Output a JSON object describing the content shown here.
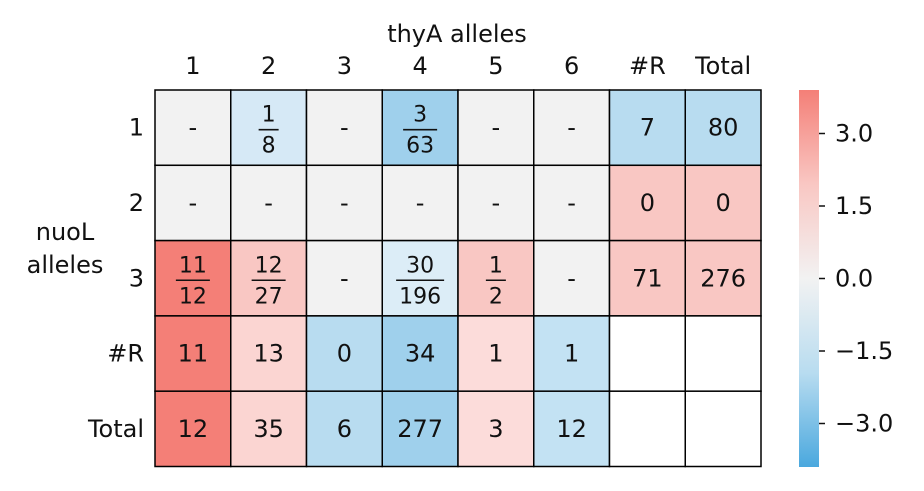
{
  "chart_data": {
    "type": "heatmap",
    "title": "thyA alleles",
    "xlabel": "thyA alleles",
    "ylabel": "nuoL alleles",
    "x_categories": [
      "1",
      "2",
      "3",
      "4",
      "5",
      "6",
      "#R",
      "Total"
    ],
    "y_categories": [
      "1",
      "2",
      "3",
      "#R",
      "Total"
    ],
    "cells": [
      [
        {
          "num": "-",
          "den": "",
          "color": "#f2f2f2"
        },
        {
          "num": "1",
          "den": "8",
          "color": "#d6e9f6"
        },
        {
          "num": "-",
          "den": "",
          "color": "#f2f2f2"
        },
        {
          "num": "3",
          "den": "63",
          "color": "#9fd0ec"
        },
        {
          "num": "-",
          "den": "",
          "color": "#f2f2f2"
        },
        {
          "num": "-",
          "den": "",
          "color": "#f2f2f2"
        },
        {
          "num": "7",
          "den": "",
          "color": "#b8dcf0"
        },
        {
          "num": "80",
          "den": "",
          "color": "#b8dcf0"
        }
      ],
      [
        {
          "num": "-",
          "den": "",
          "color": "#f2f2f2"
        },
        {
          "num": "-",
          "den": "",
          "color": "#f2f2f2"
        },
        {
          "num": "-",
          "den": "",
          "color": "#f2f2f2"
        },
        {
          "num": "-",
          "den": "",
          "color": "#f2f2f2"
        },
        {
          "num": "-",
          "den": "",
          "color": "#f2f2f2"
        },
        {
          "num": "-",
          "den": "",
          "color": "#f2f2f2"
        },
        {
          "num": "0",
          "den": "",
          "color": "#f9c7c3"
        },
        {
          "num": "0",
          "den": "",
          "color": "#f9c7c3"
        }
      ],
      [
        {
          "num": "11",
          "den": "12",
          "color": "#f47f77"
        },
        {
          "num": "12",
          "den": "27",
          "color": "#f9c7c3"
        },
        {
          "num": "-",
          "den": "",
          "color": "#f2f2f2"
        },
        {
          "num": "30",
          "den": "196",
          "color": "#dcedf7"
        },
        {
          "num": "1",
          "den": "2",
          "color": "#f9c7c3"
        },
        {
          "num": "-",
          "den": "",
          "color": "#f2f2f2"
        },
        {
          "num": "71",
          "den": "",
          "color": "#f9c7c3"
        },
        {
          "num": "276",
          "den": "",
          "color": "#f9c7c3"
        }
      ],
      [
        {
          "num": "11",
          "den": "",
          "color": "#f47f77"
        },
        {
          "num": "13",
          "den": "",
          "color": "#fbd5d2"
        },
        {
          "num": "0",
          "den": "",
          "color": "#b8dcf0"
        },
        {
          "num": "34",
          "den": "",
          "color": "#9fd0ec"
        },
        {
          "num": "1",
          "den": "",
          "color": "#fcdcda"
        },
        {
          "num": "1",
          "den": "",
          "color": "#c3e2f3"
        },
        {
          "num": "",
          "den": "",
          "color": "#ffffff"
        },
        {
          "num": "",
          "den": "",
          "color": "#ffffff"
        }
      ],
      [
        {
          "num": "12",
          "den": "",
          "color": "#f47f77"
        },
        {
          "num": "35",
          "den": "",
          "color": "#fbd5d2"
        },
        {
          "num": "6",
          "den": "",
          "color": "#b8dcf0"
        },
        {
          "num": "277",
          "den": "",
          "color": "#9fd0ec"
        },
        {
          "num": "3",
          "den": "",
          "color": "#fcdcda"
        },
        {
          "num": "12",
          "den": "",
          "color": "#c3e2f3"
        },
        {
          "num": "",
          "den": "",
          "color": "#ffffff"
        },
        {
          "num": "",
          "den": "",
          "color": "#ffffff"
        }
      ]
    ],
    "colorbar": {
      "ticks": [
        "3.0",
        "1.5",
        "0.0",
        "−1.5",
        "−3.0"
      ],
      "tick_values": [
        3.0,
        1.5,
        0.0,
        -1.5,
        -3.0
      ],
      "range": [
        -3.9,
        3.9
      ],
      "colors": [
        "#f47f77",
        "#f9c7c3",
        "#f2f2f2",
        "#b8dcf0",
        "#4aa8de"
      ]
    },
    "grid": true
  }
}
